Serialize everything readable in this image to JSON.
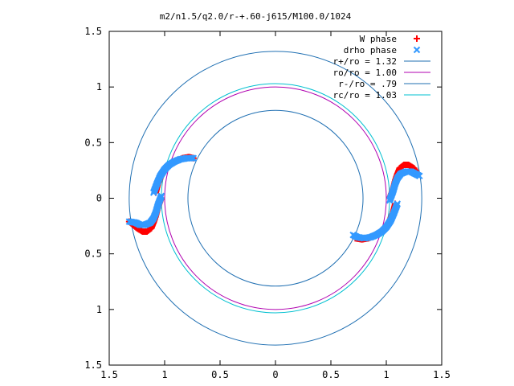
{
  "chart_data": {
    "type": "scatter",
    "title": "m2/n1.5/q2.0/r-+.60-j615/M100.0/1024",
    "xlim": [
      -1.5,
      1.5
    ],
    "ylim": [
      -1.5,
      1.5
    ],
    "x_ticks": [
      {
        "value": -1.5,
        "label": "1.5"
      },
      {
        "value": -1.0,
        "label": "1"
      },
      {
        "value": -0.5,
        "label": "0.5"
      },
      {
        "value": 0.0,
        "label": "0"
      },
      {
        "value": 0.5,
        "label": "0.5"
      },
      {
        "value": 1.0,
        "label": "1"
      },
      {
        "value": 1.5,
        "label": "1.5"
      }
    ],
    "y_ticks": [
      {
        "value": 1.5,
        "label": "1.5"
      },
      {
        "value": 1.0,
        "label": "1"
      },
      {
        "value": 0.5,
        "label": "0.5"
      },
      {
        "value": 0.0,
        "label": "0"
      },
      {
        "value": -0.5,
        "label": "0.5"
      },
      {
        "value": -1.0,
        "label": "1"
      },
      {
        "value": -1.5,
        "label": "1.5"
      }
    ],
    "grid": false,
    "legend_placement": "top-right",
    "point_series": [
      {
        "name": "W phase",
        "marker": "plus",
        "color": "#ff0000",
        "arms": [
          {
            "points": [
              [
                1.03,
                0.0
              ],
              [
                1.06,
                0.08
              ],
              [
                1.08,
                0.16
              ],
              [
                1.1,
                0.22
              ],
              [
                1.12,
                0.27
              ],
              [
                1.16,
                0.3
              ],
              [
                1.2,
                0.3
              ],
              [
                1.25,
                0.27
              ],
              [
                1.28,
                0.22
              ]
            ]
          },
          {
            "points": [
              [
                1.08,
                -0.05
              ],
              [
                1.06,
                -0.13
              ],
              [
                1.03,
                -0.2
              ],
              [
                0.99,
                -0.26
              ],
              [
                0.95,
                -0.3
              ],
              [
                0.9,
                -0.33
              ],
              [
                0.84,
                -0.36
              ],
              [
                0.78,
                -0.37
              ],
              [
                0.72,
                -0.36
              ]
            ]
          },
          {
            "points": [
              [
                -1.03,
                0.0
              ],
              [
                -1.06,
                -0.08
              ],
              [
                -1.08,
                -0.16
              ],
              [
                -1.1,
                -0.22
              ],
              [
                -1.12,
                -0.27
              ],
              [
                -1.16,
                -0.3
              ],
              [
                -1.2,
                -0.3
              ],
              [
                -1.25,
                -0.27
              ],
              [
                -1.32,
                -0.21
              ]
            ]
          },
          {
            "points": [
              [
                -1.08,
                0.05
              ],
              [
                -1.06,
                0.13
              ],
              [
                -1.03,
                0.2
              ],
              [
                -0.99,
                0.26
              ],
              [
                -0.95,
                0.3
              ],
              [
                -0.9,
                0.33
              ],
              [
                -0.84,
                0.36
              ],
              [
                -0.78,
                0.37
              ],
              [
                -0.74,
                0.36
              ]
            ]
          }
        ]
      },
      {
        "name": "drho phase",
        "marker": "cross",
        "color": "#3399ff",
        "arms": [
          {
            "points": [
              [
                1.03,
                -0.02
              ],
              [
                1.06,
                0.06
              ],
              [
                1.08,
                0.13
              ],
              [
                1.1,
                0.18
              ],
              [
                1.13,
                0.22
              ],
              [
                1.18,
                0.24
              ],
              [
                1.22,
                0.24
              ],
              [
                1.26,
                0.22
              ],
              [
                1.3,
                0.2
              ]
            ]
          },
          {
            "points": [
              [
                1.1,
                -0.05
              ],
              [
                1.07,
                -0.13
              ],
              [
                1.04,
                -0.2
              ],
              [
                1.0,
                -0.26
              ],
              [
                0.96,
                -0.3
              ],
              [
                0.91,
                -0.33
              ],
              [
                0.86,
                -0.35
              ],
              [
                0.8,
                -0.36
              ],
              [
                0.74,
                -0.35
              ],
              [
                0.7,
                -0.33
              ]
            ]
          },
          {
            "points": [
              [
                -1.03,
                0.02
              ],
              [
                -1.06,
                -0.06
              ],
              [
                -1.08,
                -0.13
              ],
              [
                -1.1,
                -0.18
              ],
              [
                -1.13,
                -0.22
              ],
              [
                -1.18,
                -0.24
              ],
              [
                -1.22,
                -0.24
              ],
              [
                -1.26,
                -0.22
              ],
              [
                -1.32,
                -0.21
              ]
            ]
          },
          {
            "points": [
              [
                -1.1,
                0.05
              ],
              [
                -1.07,
                0.13
              ],
              [
                -1.04,
                0.2
              ],
              [
                -1.0,
                0.26
              ],
              [
                -0.96,
                0.3
              ],
              [
                -0.91,
                0.33
              ],
              [
                -0.86,
                0.35
              ],
              [
                -0.8,
                0.36
              ],
              [
                -0.74,
                0.36
              ]
            ]
          }
        ]
      }
    ],
    "circle_series": [
      {
        "name": "r+/ro = 1.32",
        "radius": 1.32,
        "color": "#1f6fb2"
      },
      {
        "name": "ro/ro = 1.00",
        "radius": 1.0,
        "color": "#b000b0"
      },
      {
        "name": "r-/ro = .79",
        "radius": 0.79,
        "color": "#1f6fb2"
      },
      {
        "name": "rc/ro = 1.03",
        "radius": 1.03,
        "color": "#00c0d0"
      }
    ]
  }
}
